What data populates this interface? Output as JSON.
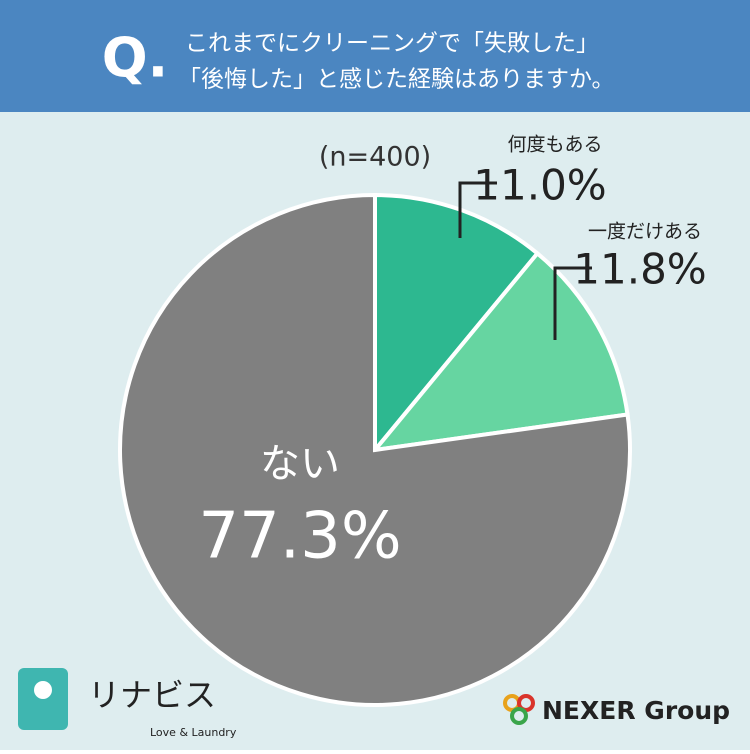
{
  "header": {
    "mark": "Q.",
    "lines": [
      "これまでにクリーニングで「失敗した」",
      "「後悔した」と感じた経験はありますか。"
    ]
  },
  "chart_data": {
    "type": "pie",
    "subtitle": "(n=400)",
    "categories": [
      "何度もある",
      "一度だけある",
      "ない"
    ],
    "values": [
      11.0,
      11.8,
      77.3
    ],
    "value_labels": [
      "11.0%",
      "11.8%",
      "77.3%"
    ],
    "colors": [
      "#2db890",
      "#66d5a1",
      "#808080"
    ]
  },
  "branding": {
    "left": "リナビス",
    "left_tagline": "Love & Laundry",
    "right": "NEXER Group"
  }
}
